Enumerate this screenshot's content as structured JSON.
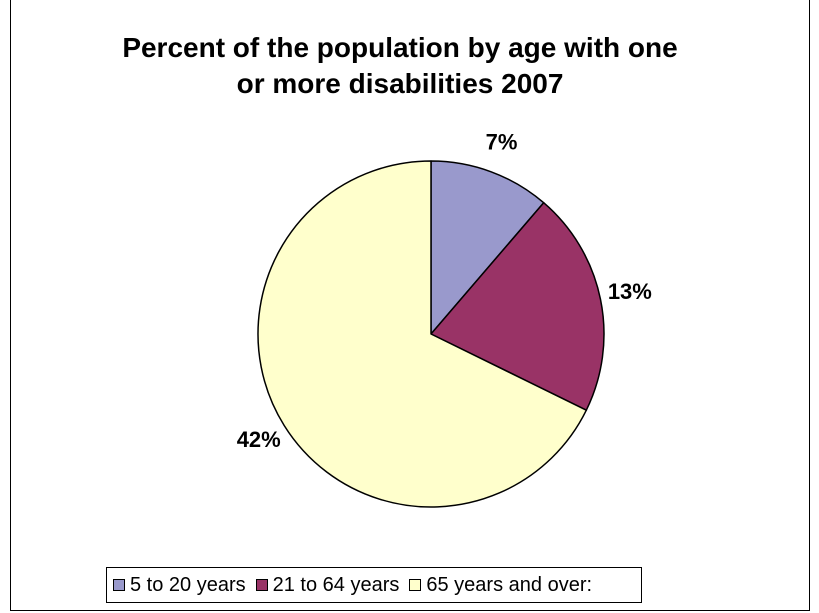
{
  "chart_data": {
    "type": "pie",
    "title_lines": [
      "Percent of the population by age with one",
      "or more disabilities 2007"
    ],
    "categories": [
      "5 to 20 years",
      "21 to 64 years",
      "65 years and over:"
    ],
    "values": [
      7,
      13,
      42
    ],
    "labels": [
      "7%",
      "13%",
      "42%"
    ],
    "colors": [
      "#9999cc",
      "#993366",
      "#ffffcc"
    ],
    "legend_position": "bottom"
  }
}
